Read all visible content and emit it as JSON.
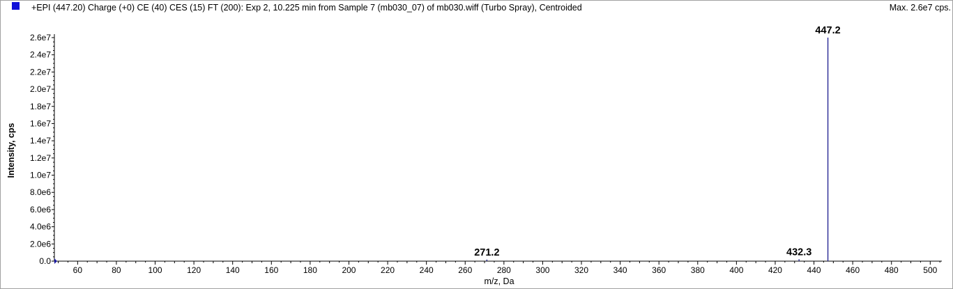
{
  "header": {
    "title": "+EPI (447.20) Charge (+0) CE (40) CES (15) FT (200): Exp 2, 10.225 min from Sample 7 (mb030_07) of mb030.wiff (Turbo Spray), Centroided",
    "max_label": "Max. 2.6e7 cps.",
    "marker_color": "#1010d8"
  },
  "chart_data": {
    "type": "bar",
    "xlabel": "m/z, Da",
    "ylabel": "Intensity, cps",
    "xlim": [
      48,
      506
    ],
    "ylim": [
      0,
      26000000
    ],
    "x_ticks": [
      60,
      80,
      100,
      120,
      140,
      160,
      180,
      200,
      220,
      240,
      260,
      280,
      300,
      320,
      340,
      360,
      380,
      400,
      420,
      440,
      460,
      480,
      500
    ],
    "y_ticks": [
      {
        "value": 0,
        "label": "0.0"
      },
      {
        "value": 2000000,
        "label": "2.0e6"
      },
      {
        "value": 4000000,
        "label": "4.0e6"
      },
      {
        "value": 6000000,
        "label": "6.0e6"
      },
      {
        "value": 8000000,
        "label": "8.0e6"
      },
      {
        "value": 10000000,
        "label": "1.0e7"
      },
      {
        "value": 12000000,
        "label": "1.2e7"
      },
      {
        "value": 14000000,
        "label": "1.4e7"
      },
      {
        "value": 16000000,
        "label": "1.6e7"
      },
      {
        "value": 18000000,
        "label": "1.8e7"
      },
      {
        "value": 20000000,
        "label": "2.0e7"
      },
      {
        "value": 22000000,
        "label": "2.2e7"
      },
      {
        "value": 24000000,
        "label": "2.4e7"
      },
      {
        "value": 26000000,
        "label": "2.6e7"
      }
    ],
    "peaks": [
      {
        "x": 271.2,
        "y": 180000,
        "label": "271.2"
      },
      {
        "x": 432.3,
        "y": 220000,
        "label": "432.3"
      },
      {
        "x": 447.2,
        "y": 26000000,
        "label": "447.2"
      }
    ],
    "peak_color": "#1a1a8c",
    "grid": false,
    "legend": "top-left"
  }
}
